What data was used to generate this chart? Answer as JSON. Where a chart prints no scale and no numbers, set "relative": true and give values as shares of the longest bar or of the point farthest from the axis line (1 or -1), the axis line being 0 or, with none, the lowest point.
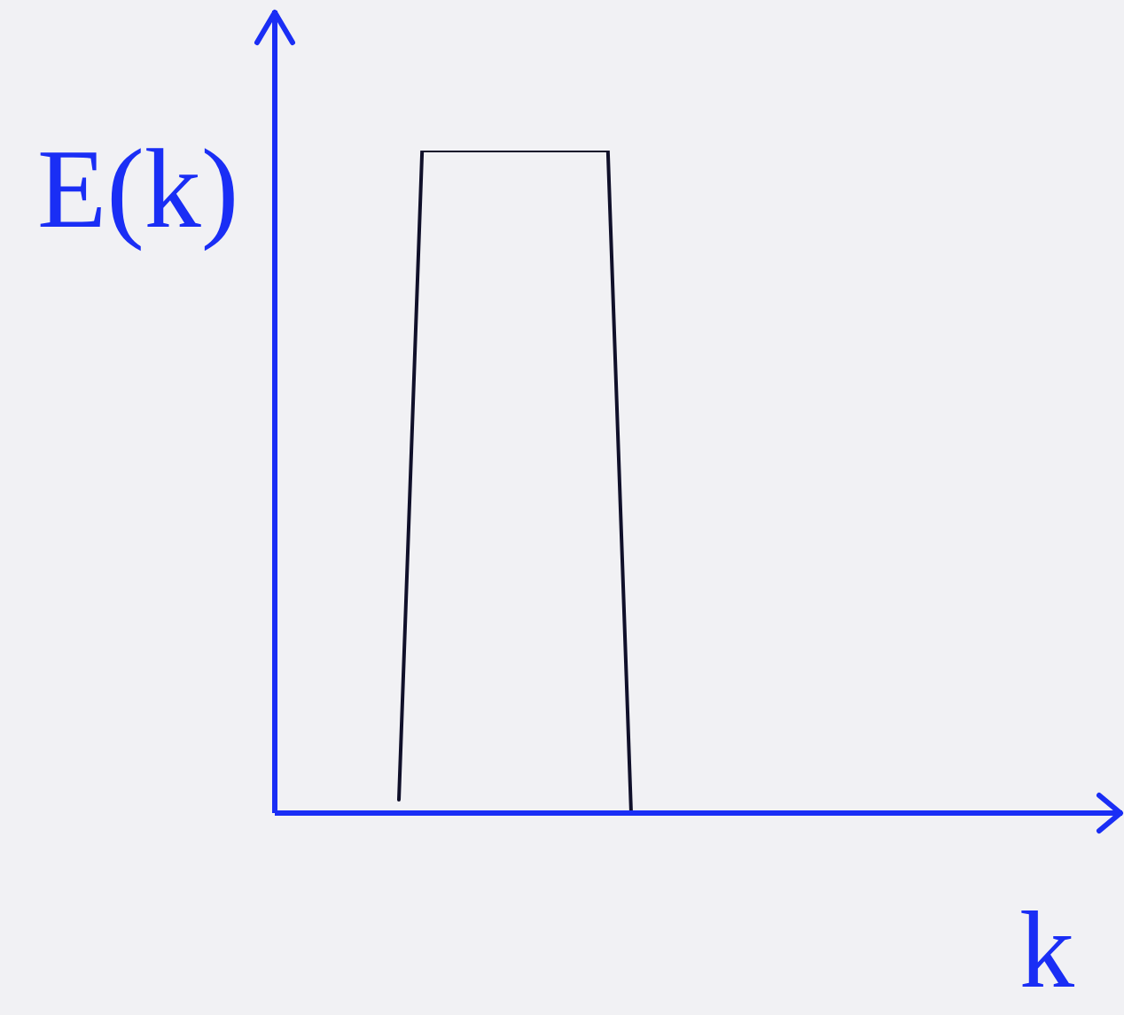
{
  "chart_data": {
    "type": "line",
    "relative": true,
    "xlabel": "k",
    "ylabel": "E(k)",
    "categories": [
      null,
      null,
      null,
      null,
      null,
      null,
      null,
      null,
      null,
      null,
      null
    ],
    "values": [
      0.02,
      1,
      null,
      null,
      null,
      null,
      null,
      null,
      null,
      1,
      0
    ],
    "color": "#10102a",
    "marker": "none",
    "line_style": "solid"
  }
}
